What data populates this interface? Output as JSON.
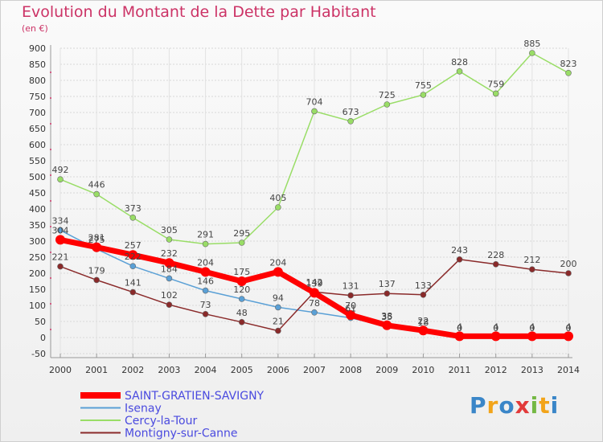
{
  "chart_data": {
    "type": "line",
    "title": "Evolution du Montant de la Dette par Habitant",
    "unit_label": "(en €)",
    "x": [
      "2000",
      "2001",
      "2002",
      "2003",
      "2004",
      "2005",
      "2006",
      "2007",
      "2008",
      "2009",
      "2010",
      "2011",
      "2012",
      "2013",
      "2014"
    ],
    "ylim": [
      -50,
      900
    ],
    "yticks": [
      -50,
      0,
      50,
      100,
      150,
      200,
      250,
      300,
      350,
      400,
      450,
      500,
      550,
      600,
      650,
      700,
      750,
      800,
      850,
      900
    ],
    "grid": true,
    "legend_position": "bottom-left",
    "series": [
      {
        "name": "SAINT-GRATIEN-SAVIGNY",
        "color": "#ff0000",
        "values": [
          304,
          281,
          257,
          232,
          204,
          175,
          204,
          139,
          70,
          38,
          22,
          4,
          4,
          4,
          4
        ],
        "labels": [
          "304",
          "281",
          "257",
          "232",
          "204",
          "175",
          "204",
          "139",
          "70",
          "38",
          "22",
          "4",
          "4",
          "4",
          "4"
        ]
      },
      {
        "name": "Isenay",
        "color": "#5aa0d6",
        "values": [
          334,
          275,
          222,
          184,
          146,
          120,
          94,
          78,
          61,
          35,
          18,
          0,
          0,
          0,
          0
        ],
        "labels": [
          "334",
          "275",
          "222",
          "184",
          "146",
          "120",
          "94",
          "78",
          "61",
          "35",
          "18",
          "0",
          "0",
          "0",
          "0"
        ]
      },
      {
        "name": "Cercy-la-Tour",
        "color": "#99dd66",
        "values": [
          492,
          446,
          373,
          305,
          291,
          295,
          405,
          704,
          673,
          725,
          755,
          828,
          759,
          885,
          823
        ],
        "labels": [
          "492",
          "446",
          "373",
          "305",
          "291",
          "295",
          "405",
          "704",
          "673",
          "725",
          "755",
          "828",
          "759",
          "885",
          "823"
        ]
      },
      {
        "name": "Montigny-sur-Canne",
        "color": "#8a2a2a",
        "values": [
          221,
          179,
          141,
          102,
          73,
          48,
          21,
          142,
          131,
          137,
          133,
          243,
          228,
          212,
          200
        ],
        "labels": [
          "221",
          "179",
          "141",
          "102",
          "73",
          "48",
          "21",
          "142",
          "131",
          "137",
          "133",
          "243",
          "228",
          "212",
          "200"
        ]
      }
    ]
  },
  "logo": {
    "text": "Proxiti",
    "letters": [
      "P",
      "r",
      "o",
      "x",
      "i",
      "t",
      "i"
    ],
    "colors": [
      "#3a86c8",
      "#f2a41a",
      "#3a86c8",
      "#e23a3a",
      "#74b843",
      "#f2a41a",
      "#3a86c8"
    ]
  }
}
